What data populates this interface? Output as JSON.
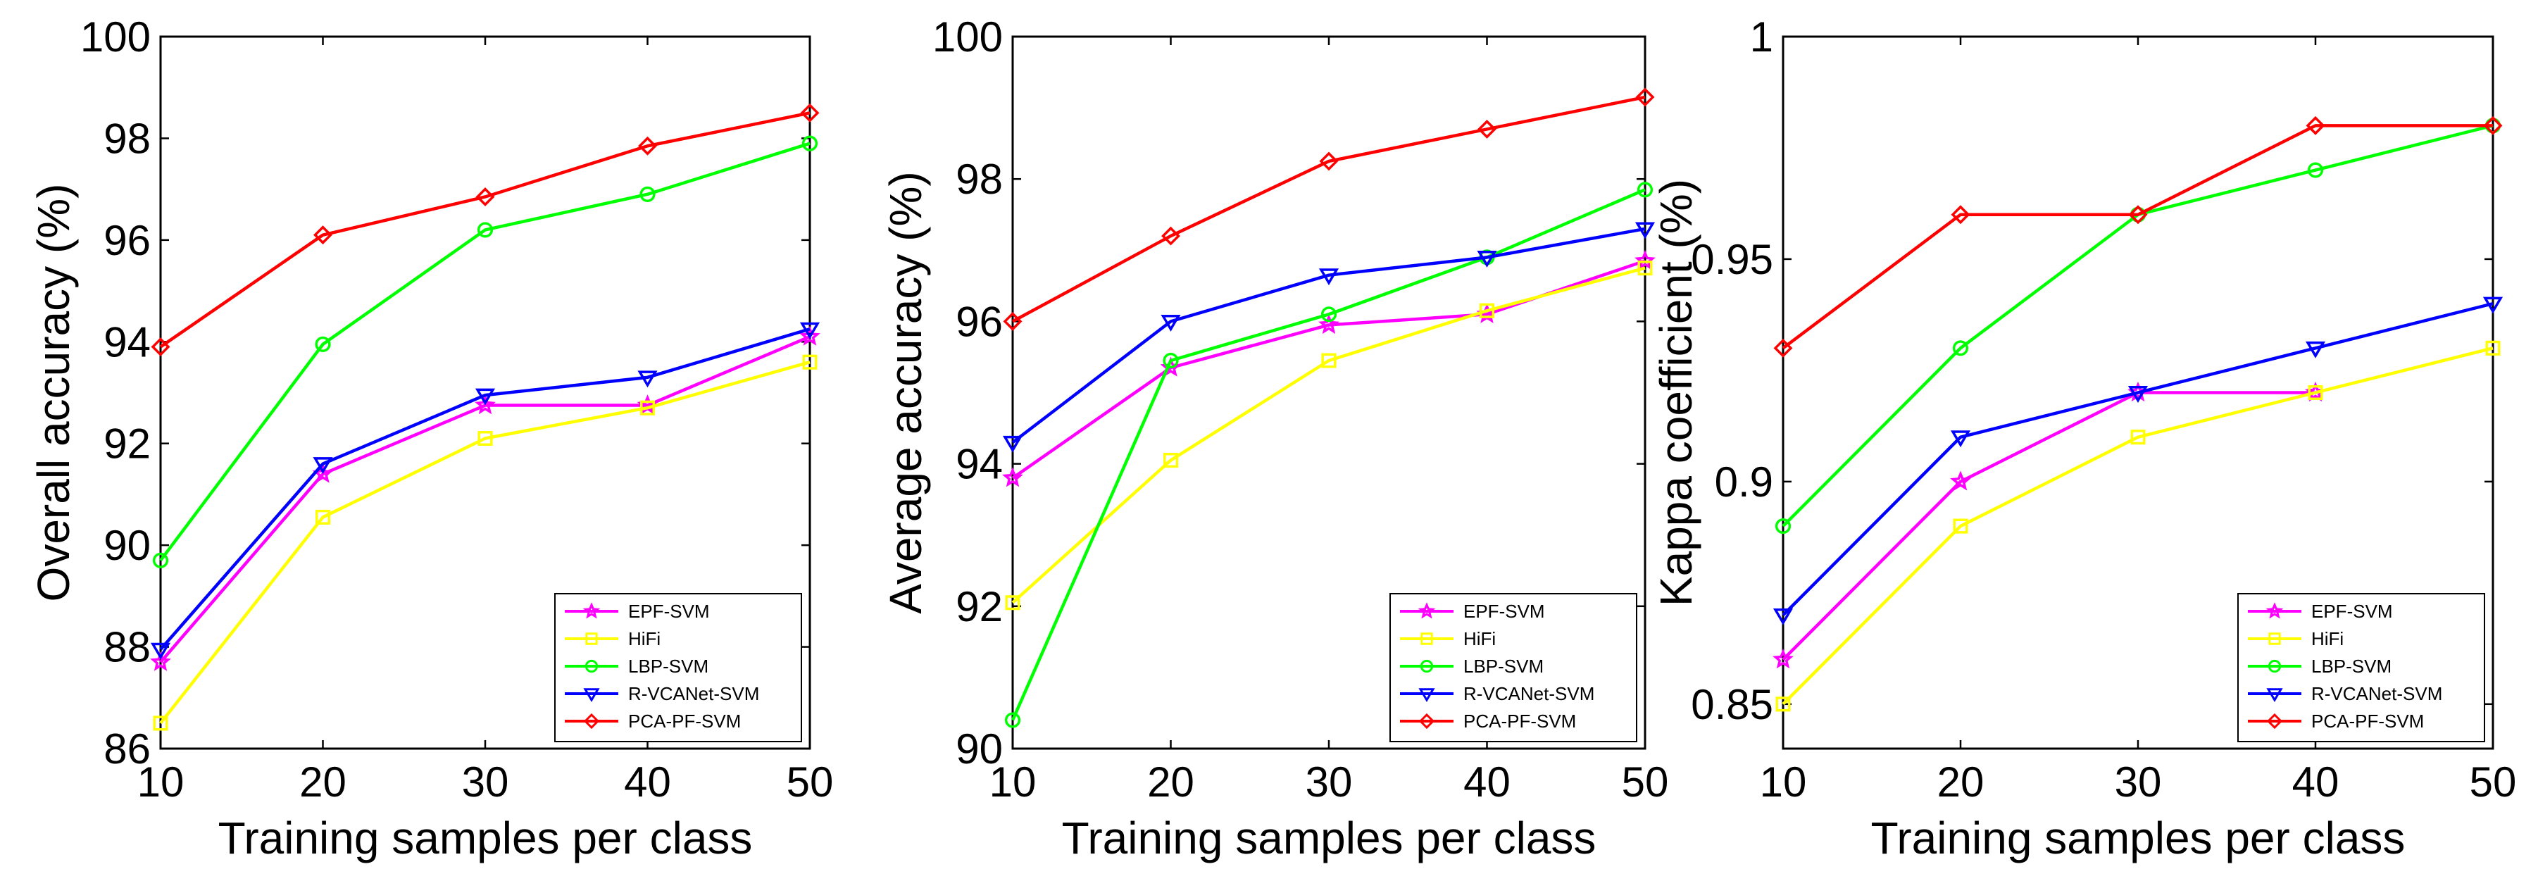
{
  "chart_data": [
    {
      "type": "line",
      "xlabel": "Training samples per class",
      "ylabel": "Overall accuracy (%)",
      "x": [
        10,
        20,
        30,
        40,
        50
      ],
      "xlim": [
        10,
        50
      ],
      "ylim": [
        86,
        100
      ],
      "xticks": [
        "10",
        "20",
        "30",
        "40",
        "50"
      ],
      "yticks": [
        "86",
        "88",
        "90",
        "92",
        "94",
        "96",
        "98",
        "100"
      ],
      "grid": false,
      "legend_position": "bottom-right",
      "series": [
        {
          "name": "EPF-SVM",
          "color": "#ff00ff",
          "marker": "star",
          "values": [
            87.7,
            91.4,
            92.75,
            92.75,
            94.1
          ]
        },
        {
          "name": "HiFi",
          "color": "#ffff00",
          "marker": "square",
          "values": [
            86.5,
            90.55,
            92.1,
            92.7,
            93.6
          ]
        },
        {
          "name": "LBP-SVM",
          "color": "#00ff00",
          "marker": "circle",
          "values": [
            89.7,
            93.95,
            96.2,
            96.9,
            97.9
          ]
        },
        {
          "name": "R-VCANet-SVM",
          "color": "#0000ff",
          "marker": "triangle-down",
          "values": [
            87.95,
            91.6,
            92.95,
            93.3,
            94.25
          ]
        },
        {
          "name": "PCA-PF-SVM",
          "color": "#ff0000",
          "marker": "diamond",
          "values": [
            93.9,
            96.1,
            96.85,
            97.85,
            98.5
          ]
        }
      ]
    },
    {
      "type": "line",
      "xlabel": "Training samples per class",
      "ylabel": "Average accuracy (%)",
      "x": [
        10,
        20,
        30,
        40,
        50
      ],
      "xlim": [
        10,
        50
      ],
      "ylim": [
        90,
        100
      ],
      "xticks": [
        "10",
        "20",
        "30",
        "40",
        "50"
      ],
      "yticks": [
        "90",
        "92",
        "94",
        "96",
        "98",
        "100"
      ],
      "grid": false,
      "legend_position": "bottom-right",
      "series": [
        {
          "name": "EPF-SVM",
          "color": "#ff00ff",
          "marker": "star",
          "values": [
            93.8,
            95.35,
            95.95,
            96.1,
            96.85
          ]
        },
        {
          "name": "HiFi",
          "color": "#ffff00",
          "marker": "square",
          "values": [
            92.05,
            94.05,
            95.45,
            96.15,
            96.75
          ]
        },
        {
          "name": "LBP-SVM",
          "color": "#00ff00",
          "marker": "circle",
          "values": [
            90.4,
            95.45,
            96.1,
            96.9,
            97.85
          ]
        },
        {
          "name": "R-VCANet-SVM",
          "color": "#0000ff",
          "marker": "triangle-down",
          "values": [
            94.3,
            96.0,
            96.65,
            96.9,
            97.3
          ]
        },
        {
          "name": "PCA-PF-SVM",
          "color": "#ff0000",
          "marker": "diamond",
          "values": [
            96.0,
            97.2,
            98.25,
            98.7,
            99.15
          ]
        }
      ]
    },
    {
      "type": "line",
      "xlabel": "Training samples per class",
      "ylabel": "Kappa coefficient (%)",
      "x": [
        10,
        20,
        30,
        40,
        50
      ],
      "xlim": [
        10,
        50
      ],
      "ylim": [
        0.84,
        1.0
      ],
      "xticks": [
        "10",
        "20",
        "30",
        "40",
        "50"
      ],
      "yticks": [
        "0.85",
        "0.9",
        "0.95",
        "1"
      ],
      "ytick_values": [
        0.85,
        0.9,
        0.95,
        1.0
      ],
      "grid": false,
      "legend_position": "bottom-right",
      "series": [
        {
          "name": "EPF-SVM",
          "color": "#ff00ff",
          "marker": "star",
          "values": [
            0.86,
            0.9,
            0.92,
            0.92,
            null
          ]
        },
        {
          "name": "HiFi",
          "color": "#ffff00",
          "marker": "square",
          "values": [
            0.85,
            0.89,
            0.91,
            0.92,
            0.93
          ]
        },
        {
          "name": "LBP-SVM",
          "color": "#00ff00",
          "marker": "circle",
          "values": [
            0.89,
            0.93,
            0.96,
            0.97,
            0.98
          ]
        },
        {
          "name": "R-VCANet-SVM",
          "color": "#0000ff",
          "marker": "triangle-down",
          "values": [
            0.87,
            0.91,
            0.92,
            0.93,
            0.94
          ]
        },
        {
          "name": "PCA-PF-SVM",
          "color": "#ff0000",
          "marker": "diamond",
          "values": [
            0.93,
            0.96,
            0.96,
            0.98,
            0.98
          ]
        }
      ]
    }
  ]
}
